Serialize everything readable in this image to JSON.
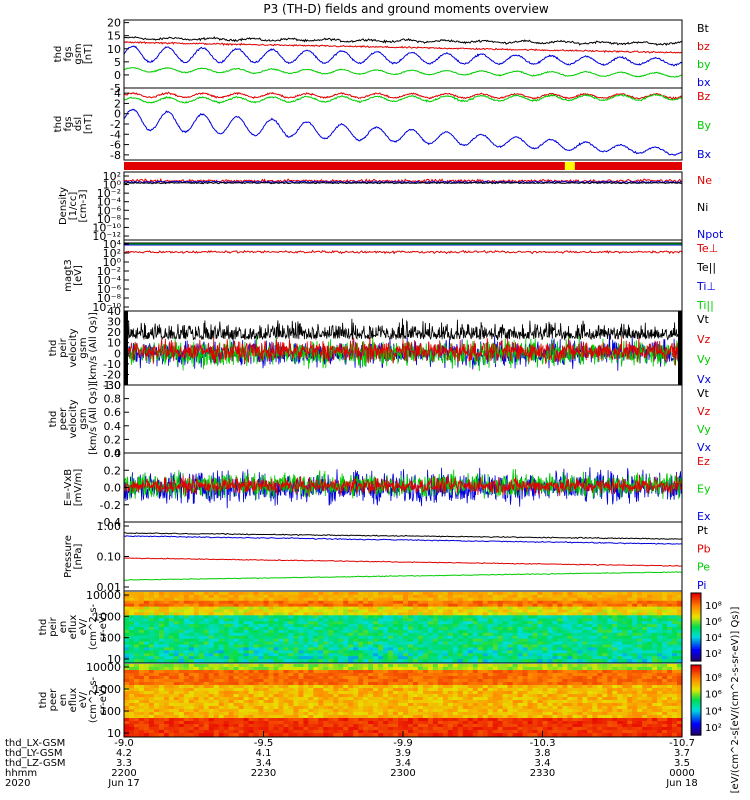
{
  "title": "P3 (TH-D) fields and ground moments overview",
  "colors": {
    "black": "#000000",
    "red": "#e00000",
    "green": "#00cc00",
    "blue": "#0000dd",
    "yellow": "#ffff00"
  },
  "chart_data": [
    {
      "type": "line",
      "ylabel": [
        "thd",
        "fgs",
        "gsm",
        "[nT]"
      ],
      "yticks": [
        "20",
        "15",
        "10",
        "5",
        "0",
        "-5"
      ],
      "ylim": [
        -5,
        21
      ],
      "legend": [
        {
          "name": "Bt",
          "color": "#000000"
        },
        {
          "name": "bz",
          "color": "#e00000"
        },
        {
          "name": "by",
          "color": "#00cc00"
        },
        {
          "name": "bx",
          "color": "#0000dd"
        }
      ]
    },
    {
      "type": "line",
      "ylabel": [
        "thd",
        "fgs",
        "dsl",
        "[nT]"
      ],
      "yticks": [
        "4",
        "2",
        "0",
        "-2",
        "-4",
        "-6",
        "-8"
      ],
      "ylim": [
        -9,
        5
      ],
      "legend": [
        {
          "name": "Bz",
          "color": "#e00000"
        },
        {
          "name": "By",
          "color": "#00cc00"
        },
        {
          "name": "Bx",
          "color": "#0000dd"
        }
      ]
    },
    {
      "type": "line",
      "ylabel": [
        "Density",
        "[1/cc]",
        "[cm-3]"
      ],
      "yticks": [
        "10²",
        "10⁰",
        "10⁻²",
        "10⁻⁴",
        "10⁻⁶",
        "10⁻⁸",
        "10⁻¹⁰",
        "10⁻¹²"
      ],
      "legend": [
        {
          "name": "Ne",
          "color": "#e00000"
        },
        {
          "name": "Ni",
          "color": "#000000"
        },
        {
          "name": "Npot",
          "color": "#0000dd"
        }
      ]
    },
    {
      "type": "line",
      "ylabel": [
        "magt3",
        "[eV]"
      ],
      "yticks": [
        "10⁴",
        "10²",
        "10⁰",
        "10⁻²",
        "10⁻⁴",
        "10⁻⁶",
        "10⁻⁸",
        "10⁻¹⁰"
      ],
      "legend": [
        {
          "name": "Te⊥",
          "color": "#e00000"
        },
        {
          "name": "Te||",
          "color": "#000000"
        },
        {
          "name": "Ti⊥",
          "color": "#0000dd"
        },
        {
          "name": "Ti||",
          "color": "#00cc00"
        }
      ]
    },
    {
      "type": "line",
      "ylabel": [
        "thd",
        "peir",
        "velocity",
        "gsm",
        "[km/s (All Qs)]"
      ],
      "yticks": [
        "40",
        "30",
        "20",
        "10",
        "0",
        "-10",
        "-20",
        "-30"
      ],
      "ylim": [
        -30,
        40
      ],
      "legend": [
        {
          "name": "Vt",
          "color": "#000000"
        },
        {
          "name": "Vz",
          "color": "#e00000"
        },
        {
          "name": "Vy",
          "color": "#00cc00"
        },
        {
          "name": "Vx",
          "color": "#0000dd"
        }
      ]
    },
    {
      "type": "line",
      "ylabel": [
        "thd",
        "peer",
        "velocity",
        "gsm",
        "[km/s (All Qs)]"
      ],
      "yticks": [
        "1.0",
        "0.8",
        "0.6",
        "0.4",
        "0.2",
        "0.0"
      ],
      "ylim": [
        0,
        1
      ],
      "legend": [
        {
          "name": "Vt",
          "color": "#000000"
        },
        {
          "name": "Vz",
          "color": "#e00000"
        },
        {
          "name": "Vy",
          "color": "#00cc00"
        },
        {
          "name": "Vx",
          "color": "#0000dd"
        }
      ]
    },
    {
      "type": "line",
      "ylabel": [
        "E=-VxB",
        "[mV/m]"
      ],
      "yticks": [
        "0.4",
        "0.2",
        "0.0",
        "-0.2",
        "-0.4"
      ],
      "ylim": [
        -0.4,
        0.4
      ],
      "legend": [
        {
          "name": "Ez",
          "color": "#e00000"
        },
        {
          "name": "Ey",
          "color": "#00cc00"
        },
        {
          "name": "Ex",
          "color": "#0000dd"
        }
      ]
    },
    {
      "type": "line",
      "ylabel": [
        "Pressure",
        "[nPa]"
      ],
      "yticks": [
        "1.00",
        "0.10",
        "0.01"
      ],
      "legend": [
        {
          "name": "Pt",
          "color": "#000000"
        },
        {
          "name": "Pb",
          "color": "#e00000"
        },
        {
          "name": "Pe",
          "color": "#00cc00"
        },
        {
          "name": "Pi",
          "color": "#0000dd"
        }
      ]
    },
    {
      "type": "heatmap",
      "ylabel": [
        "thd",
        "peir",
        "en",
        "eflux",
        "eV/",
        "(cm^2-s-",
        "sr-eV)"
      ],
      "yticks": [
        "10000",
        "1000",
        "100",
        "10"
      ],
      "colorbar_ticks": [
        "10⁸",
        "10⁶",
        "10⁴",
        "10²"
      ]
    },
    {
      "type": "heatmap",
      "ylabel": [
        "thd",
        "peer",
        "en",
        "eflux",
        "eV/",
        "(cm^2-s-",
        "sr-eV)"
      ],
      "yticks": [
        "10000",
        "1000",
        "100",
        "10"
      ],
      "colorbar_ticks": [
        "10⁸",
        "10⁶",
        "10⁴",
        "10²"
      ]
    }
  ],
  "colorbar_label": "[eV/(cm^2-s[eV/(cm^2-s-sr-eV)] Qs)]",
  "xaxis": {
    "rows": [
      {
        "label": "thd_LX-GSM",
        "values": [
          "-9.0",
          "-9.5",
          "-9.9",
          "-10.3",
          "-10.7"
        ]
      },
      {
        "label": "thd_LY-GSM",
        "values": [
          "4.2",
          "4.1",
          "3.9",
          "3.8",
          "3.7"
        ]
      },
      {
        "label": "thd_LZ-GSM",
        "values": [
          "3.3",
          "3.4",
          "3.4",
          "3.4",
          "3.5"
        ]
      },
      {
        "label": "hhmm",
        "values": [
          "2200",
          "2230",
          "2300",
          "2330",
          "0000"
        ]
      },
      {
        "label": "2020",
        "values": [
          "Jun 17",
          "",
          "",
          "",
          "Jun 18"
        ]
      }
    ]
  }
}
